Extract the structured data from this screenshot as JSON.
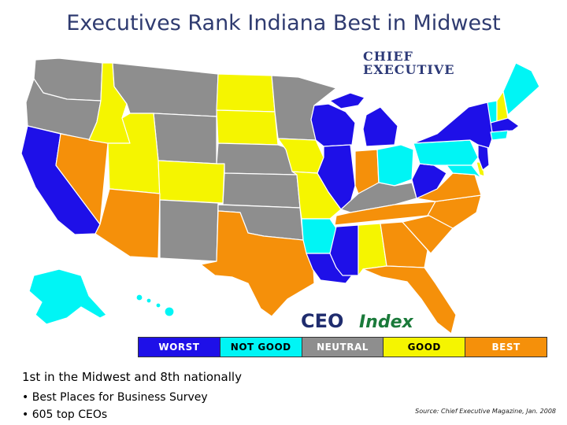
{
  "title": "Executives Rank Indiana Best in Midwest",
  "logos": {
    "chief_executive_line1": "CHIEF",
    "chief_executive_line2": "EXECUTIVE",
    "ceo_index_part1": "CEO",
    "ceo_index_part2": "Index"
  },
  "legend": [
    {
      "label": "WORST",
      "color": "#1e10e8",
      "text_color": "#ffffff"
    },
    {
      "label": "NOT GOOD",
      "color": "#00f5f5",
      "text_color": "#000000"
    },
    {
      "label": "NEUTRAL",
      "color": "#8e8e8e",
      "text_color": "#ffffff"
    },
    {
      "label": "GOOD",
      "color": "#f5f500",
      "text_color": "#000000"
    },
    {
      "label": "BEST",
      "color": "#f5900a",
      "text_color": "#ffffff"
    }
  ],
  "summary": {
    "headline": "1st in the Midwest and 8th nationally",
    "bullets": [
      "• Best Places for Business Survey",
      "• 605 top CEOs"
    ]
  },
  "source": "Source: Chief Executive Magazine, Jan. 2008"
}
